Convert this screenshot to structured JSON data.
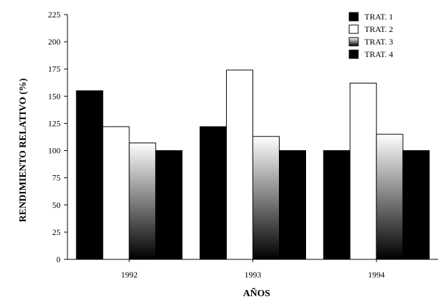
{
  "chart_data": {
    "type": "bar",
    "categories": [
      "1992",
      "1993",
      "1994"
    ],
    "series": [
      {
        "name": "TRAT. 1",
        "values": [
          155,
          122,
          100
        ],
        "fill": "solid-black"
      },
      {
        "name": "TRAT. 2",
        "values": [
          122,
          174,
          162
        ],
        "fill": "white"
      },
      {
        "name": "TRAT. 3",
        "values": [
          107,
          113,
          115
        ],
        "fill": "gradient-white-to-black"
      },
      {
        "name": "TRAT. 4",
        "values": [
          100,
          100,
          100
        ],
        "fill": "solid-black"
      }
    ],
    "xlabel": "AÑOS",
    "ylabel": "RENDIMIENTO RELATIVO (%)",
    "ylim": [
      0,
      225
    ],
    "yticks": [
      "0",
      "25",
      "50",
      "75",
      "100",
      "125",
      "150",
      "175",
      "200",
      "225"
    ],
    "grid": false,
    "legend_position": "top-right",
    "colors": {
      "black": "#000000",
      "white": "#ffffff",
      "gradient_top": "#ffffff",
      "gradient_bottom": "#000000"
    }
  }
}
